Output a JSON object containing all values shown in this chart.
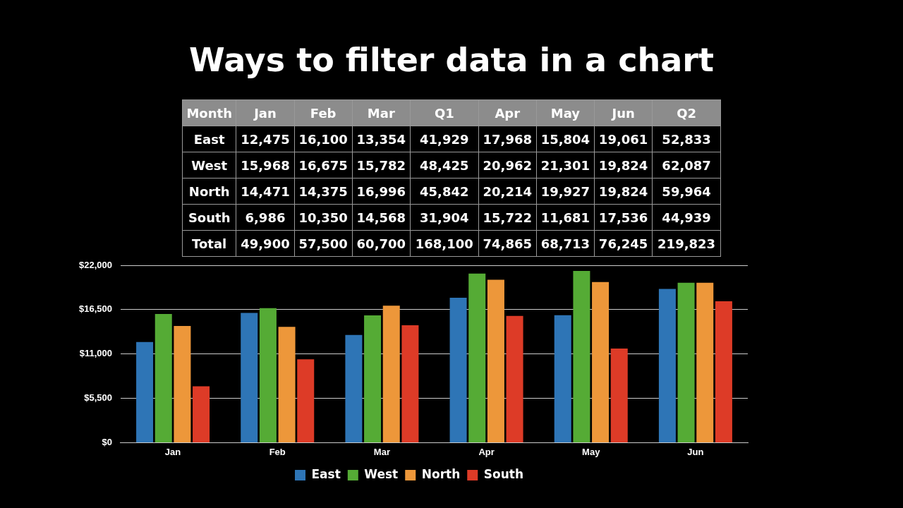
{
  "chart_data": {
    "type": "bar",
    "title": "Ways to filter data in a chart",
    "categories": [
      "Jan",
      "Feb",
      "Mar",
      "Apr",
      "May",
      "Jun"
    ],
    "series": [
      {
        "name": "East",
        "color": "#2e75b6",
        "values": [
          12475,
          16100,
          13354,
          17968,
          15804,
          19061
        ]
      },
      {
        "name": "West",
        "color": "#55ab35",
        "values": [
          15968,
          16675,
          15782,
          20962,
          21301,
          19824
        ]
      },
      {
        "name": "North",
        "color": "#ed973a",
        "values": [
          14471,
          14375,
          16996,
          20214,
          19927,
          19824
        ]
      },
      {
        "name": "South",
        "color": "#dd3b27",
        "values": [
          6986,
          10350,
          14568,
          15722,
          11681,
          17536
        ]
      }
    ],
    "ylim": [
      0,
      22000
    ],
    "yticks": [
      {
        "value": 0,
        "label": "$0"
      },
      {
        "value": 5500,
        "label": "$5,500"
      },
      {
        "value": 11000,
        "label": "$11,000"
      },
      {
        "value": 16500,
        "label": "$16,500"
      },
      {
        "value": 22000,
        "label": "$22,000"
      }
    ],
    "grid": "y",
    "legend": "bottom",
    "annotations": [
      "Month Jan Feb Mar Q1 Apr May Jun Q2",
      "East 12,475 16,100 13,354 41,929 17,968 15,804 19,061 52,833",
      "West 15,968 16,675 15,782 48,425 20,962 21,301 19,824 62,087",
      "North 14,471 14,375 16,996 45,842 20,214 19,927 19,824 59,964",
      "South 6,986 10,350 14,568 31,904 15,722 11,681 17,536 44,939",
      "Total 49,900 57,500 60,700 168,100 74,865 68,713 76,245 219,823"
    ]
  }
}
